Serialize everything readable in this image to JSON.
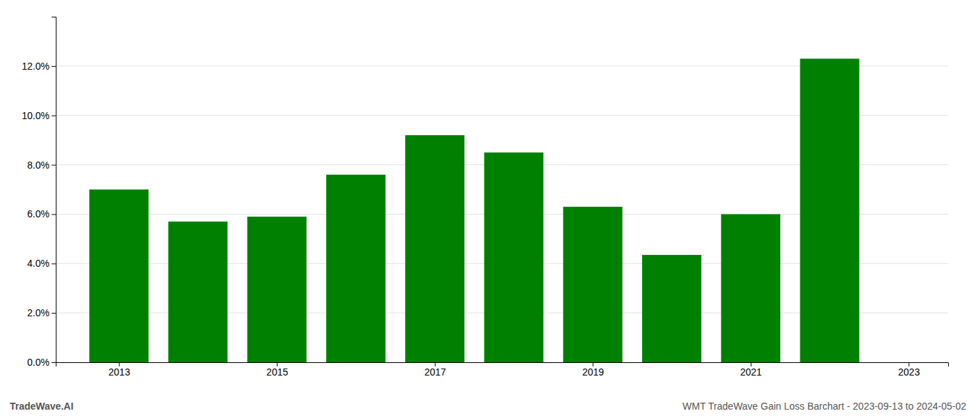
{
  "chart_data": {
    "type": "bar",
    "x": [
      2013,
      2014,
      2015,
      2016,
      2017,
      2018,
      2019,
      2020,
      2021,
      2022
    ],
    "values": [
      0.07,
      0.057,
      0.059,
      0.076,
      0.092,
      0.085,
      0.063,
      0.0435,
      0.06,
      0.123
    ],
    "color": "#008000",
    "xlim": [
      2012.2,
      2023.5
    ],
    "xticks": [
      2013,
      2015,
      2017,
      2019,
      2021,
      2023
    ],
    "ylim": [
      0,
      0.14
    ],
    "yticks": [
      {
        "value": 0.0,
        "label": "0.0%"
      },
      {
        "value": 0.02,
        "label": "2.0%"
      },
      {
        "value": 0.04,
        "label": "4.0%"
      },
      {
        "value": 0.06,
        "label": "6.0%"
      },
      {
        "value": 0.08,
        "label": "8.0%"
      },
      {
        "value": 0.1,
        "label": "10.0%"
      },
      {
        "value": 0.12,
        "label": "12.0%"
      }
    ],
    "grid": true,
    "annotations": [
      "TradeWave.AI",
      "WMT TradeWave Gain Loss Barchart - 2023-09-13 to 2024-05-02"
    ]
  }
}
